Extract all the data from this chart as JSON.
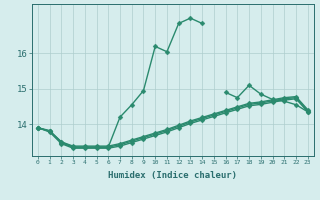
{
  "xlabel": "Humidex (Indice chaleur)",
  "x_values": [
    0,
    1,
    2,
    3,
    4,
    5,
    6,
    7,
    8,
    9,
    10,
    11,
    12,
    13,
    14,
    15,
    16,
    17,
    18,
    19,
    20,
    21,
    22,
    23
  ],
  "line1_y": [
    13.9,
    13.8,
    13.5,
    13.35,
    13.35,
    13.35,
    13.35,
    14.2,
    14.55,
    14.95,
    16.2,
    16.05,
    16.85,
    17.0,
    16.85,
    null,
    14.9,
    14.75,
    15.1,
    14.85,
    14.7,
    14.65,
    14.55,
    14.35
  ],
  "line2_y": [
    13.9,
    13.78,
    13.45,
    13.32,
    13.32,
    13.32,
    13.32,
    13.38,
    13.48,
    13.58,
    13.68,
    13.78,
    13.9,
    14.02,
    14.12,
    14.22,
    14.32,
    14.42,
    14.52,
    14.56,
    14.62,
    14.68,
    14.72,
    14.35
  ],
  "line3_y": [
    13.9,
    13.8,
    13.48,
    13.35,
    13.35,
    13.35,
    13.35,
    13.42,
    13.52,
    13.62,
    13.72,
    13.82,
    13.94,
    14.06,
    14.16,
    14.26,
    14.36,
    14.46,
    14.56,
    14.6,
    14.66,
    14.72,
    14.75,
    14.38
  ],
  "line4_y": [
    13.9,
    13.82,
    13.5,
    13.38,
    13.38,
    13.38,
    13.38,
    13.45,
    13.55,
    13.65,
    13.75,
    13.85,
    13.97,
    14.09,
    14.19,
    14.29,
    14.39,
    14.49,
    14.59,
    14.63,
    14.69,
    14.75,
    14.78,
    14.41
  ],
  "ylim": [
    13.1,
    17.4
  ],
  "yticks": [
    14,
    15,
    16
  ],
  "line_color": "#2a8a6e",
  "bg_color": "#d6eded",
  "grid_color": "#aecece",
  "axis_color": "#2a6e6e",
  "markersize": 2.5,
  "linewidth": 1.0
}
